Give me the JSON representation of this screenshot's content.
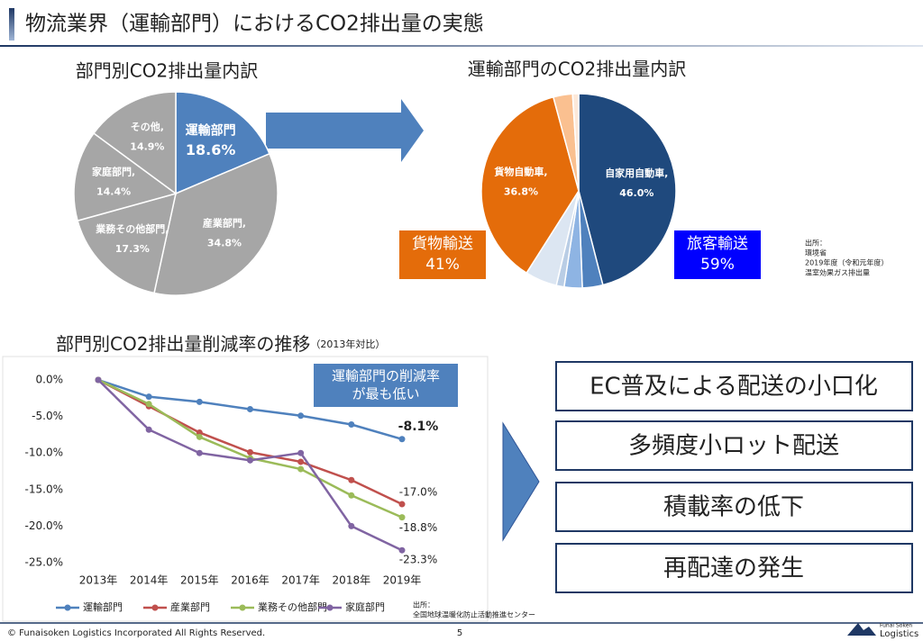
{
  "header": {
    "title": "物流業界（運輸部門）におけるCO2排出量の実態"
  },
  "chart_data": [
    {
      "type": "pie",
      "title": "部門別CO2排出量内訳",
      "categories": [
        "運輸部門",
        "産業部門,",
        "業務その他部門,",
        "家庭部門,",
        "その他,"
      ],
      "values": [
        18.6,
        34.8,
        17.3,
        14.4,
        14.9
      ],
      "value_labels": [
        "18.6%",
        "34.8%",
        "17.3%",
        "14.4%",
        "14.9%"
      ],
      "colors": [
        "#4f81bd",
        "#a6a6a6",
        "#a6a6a6",
        "#a6a6a6",
        "#a6a6a6"
      ]
    },
    {
      "type": "pie",
      "title": "運輸部門のCO2排出量内訳",
      "categories": [
        "自家用自動車,",
        null,
        null,
        null,
        null,
        "貨物自動車,",
        null,
        null
      ],
      "values": [
        46.0,
        3.4,
        3.0,
        1.3,
        5.3,
        36.8,
        3.2,
        1.0
      ],
      "value_labels": [
        "46.0%",
        null,
        null,
        null,
        null,
        "36.8%",
        null,
        null
      ],
      "colors": [
        "#1f497d",
        "#4f81bd",
        "#8eb4e3",
        "#b9cde5",
        "#dce6f2",
        "#e46c0a",
        "#fac090",
        "#fde9d9"
      ],
      "groups": [
        {
          "name": "貨物輸送",
          "value_label": "41%",
          "color": "#e46c0a"
        },
        {
          "name": "旅客輸送",
          "value_label": "59%",
          "color": "#0000ff"
        }
      ],
      "source": [
        "出所：",
        "環境省",
        "2019年度（令和元年度）",
        "温室効果ガス排出量"
      ]
    },
    {
      "type": "line",
      "title": "部門別CO2排出量削減率の推移",
      "subtitle": "（2013年対比）",
      "categories": [
        "2013年",
        "2014年",
        "2015年",
        "2016年",
        "2017年",
        "2018年",
        "2019年"
      ],
      "ylim": [
        -25,
        0
      ],
      "yticks": [
        {
          "value": 0,
          "label": "0.0%"
        },
        {
          "value": -5,
          "label": "-5.0%"
        },
        {
          "value": -10,
          "label": "-10.0%"
        },
        {
          "value": -15,
          "label": "-15.0%"
        },
        {
          "value": -20,
          "label": "-20.0%"
        },
        {
          "value": -25,
          "label": "-25.0%"
        }
      ],
      "series": [
        {
          "name": "運輸部門",
          "color": "#4f81bd",
          "values": [
            0,
            -2.3,
            -3.0,
            -4.0,
            -4.9,
            -6.1,
            -8.1
          ],
          "value_labels": [
            null,
            null,
            null,
            null,
            null,
            null,
            "-8.1%"
          ]
        },
        {
          "name": "産業部門",
          "color": "#c0504d",
          "values": [
            0,
            -3.6,
            -7.2,
            -9.9,
            -11.2,
            -13.7,
            -17.0
          ],
          "value_labels": [
            null,
            null,
            null,
            null,
            null,
            null,
            "-17.0%"
          ]
        },
        {
          "name": "業務その他部門",
          "color": "#9bbb59",
          "values": [
            0,
            -3.3,
            -7.8,
            -10.7,
            -12.2,
            -15.8,
            -18.8
          ],
          "value_labels": [
            null,
            null,
            null,
            null,
            null,
            null,
            "-18.8%"
          ]
        },
        {
          "name": "家庭部門",
          "color": "#8064a2",
          "values": [
            0,
            -6.8,
            -10.0,
            -11.0,
            -10.0,
            -20.0,
            -23.3
          ],
          "value_labels": [
            null,
            null,
            null,
            null,
            null,
            null,
            "-23.3%"
          ]
        }
      ],
      "callout": [
        "運輸部門の削減率",
        "が最も低い"
      ],
      "source": [
        "出所：",
        "全国地球温暖化防止活動推進センター"
      ]
    }
  ],
  "factors": [
    "EC普及による配送の小口化",
    "多頻度小ロット配送",
    "積載率の低下",
    "再配達の発生"
  ],
  "footer": {
    "copyright": "© Funaisoken Logistics Incorporated All Rights Reserved.",
    "page": "5",
    "logo_top": "Funai Soken",
    "logo_bottom": "Logistics"
  }
}
